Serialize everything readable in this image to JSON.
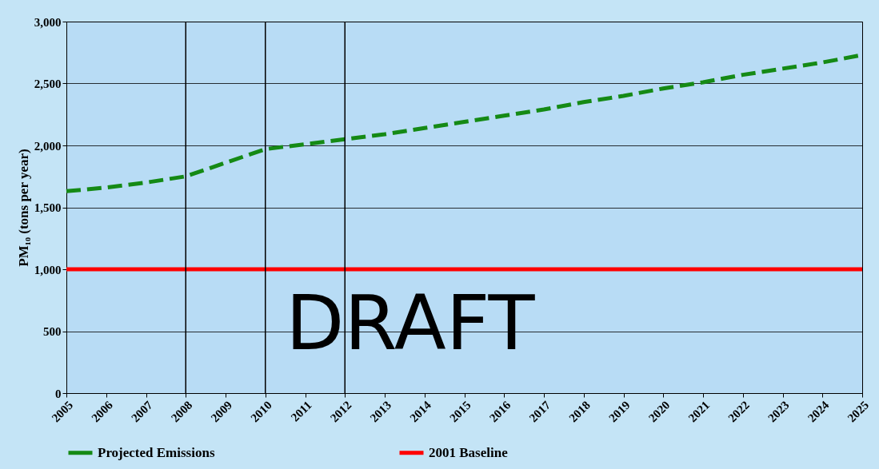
{
  "chart_data": {
    "type": "line",
    "ylabel": "PM₁₀ (tons per year)",
    "x": [
      2005,
      2006,
      2007,
      2008,
      2009,
      2010,
      2011,
      2012,
      2013,
      2014,
      2015,
      2016,
      2017,
      2018,
      2019,
      2020,
      2021,
      2022,
      2023,
      2024,
      2025
    ],
    "series": [
      {
        "name": "Projected Emissions",
        "color": "#158a15",
        "line_style": "dashed",
        "values": [
          1630,
          1660,
          1700,
          1750,
          1860,
          1970,
          2010,
          2050,
          2090,
          2140,
          2190,
          2240,
          2290,
          2350,
          2400,
          2460,
          2510,
          2570,
          2620,
          2670,
          2730
        ]
      },
      {
        "name": "2001 Baseline",
        "color": "#ff0000",
        "line_style": "solid",
        "values": [
          1000,
          1000,
          1000,
          1000,
          1000,
          1000,
          1000,
          1000,
          1000,
          1000,
          1000,
          1000,
          1000,
          1000,
          1000,
          1000,
          1000,
          1000,
          1000,
          1000,
          1000
        ]
      }
    ],
    "xlim": [
      2005,
      2025
    ],
    "xticks": [
      2005,
      2006,
      2007,
      2008,
      2009,
      2010,
      2011,
      2012,
      2013,
      2014,
      2015,
      2016,
      2017,
      2018,
      2019,
      2020,
      2021,
      2022,
      2023,
      2024,
      2025
    ],
    "ylim": [
      0,
      3000
    ],
    "yticks": [
      0,
      500,
      {
        "value": 1000,
        "label": "1,000"
      },
      {
        "value": 1500,
        "label": "1,500"
      },
      {
        "value": 2000,
        "label": "2,000"
      },
      {
        "value": 2500,
        "label": "2,500"
      },
      {
        "value": 3000,
        "label": "3,000"
      }
    ],
    "ref_lines": [
      {
        "axis": "x",
        "value": 2008,
        "color": "#000000"
      },
      {
        "axis": "x",
        "value": 2010,
        "color": "#000000"
      },
      {
        "axis": "x",
        "value": 2012,
        "color": "#000000"
      }
    ],
    "annotations": [
      "DRAFT"
    ],
    "grid": "y",
    "legend": "bottom",
    "marker": "none"
  }
}
